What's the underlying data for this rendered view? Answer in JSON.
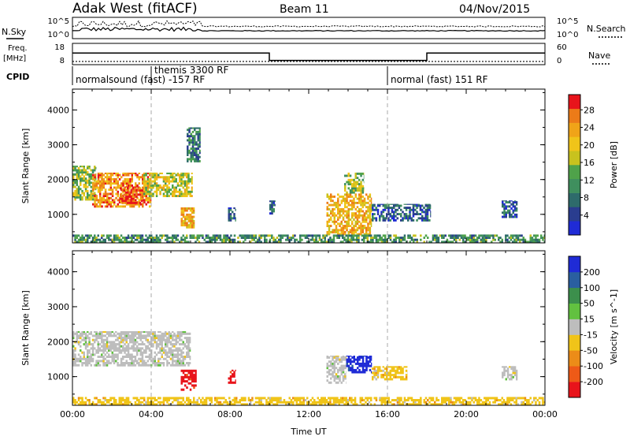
{
  "header": {
    "site": "Adak West (fitACF)",
    "beam": "Beam 11",
    "date": "04/Nov/2015"
  },
  "strip_labels": {
    "nsky": "N.Sky",
    "nsearch": "N.Search",
    "freq_line1": "Freq.",
    "freq_line2": "[MHz]",
    "nave": "Nave",
    "cpid": "CPID"
  },
  "strip_ticks": {
    "noise_left_top": "10^5",
    "noise_left_bottom": "10^0",
    "noise_right_top": "10^5",
    "noise_right_bottom": "10^0",
    "freq_left_top": "18",
    "freq_left_bottom": "8",
    "freq_right_top": "60",
    "freq_right_bottom": "0"
  },
  "cpid_segments": [
    {
      "label": "normalsound (fast) -157 RF",
      "start_hour": 0.0
    },
    {
      "label": "themis 3300 RF",
      "start_hour": 4.0
    },
    {
      "label": "normal (fast) 151 RF",
      "start_hour": 16.0
    }
  ],
  "colors": {
    "scale_blue": "#1f2bd6",
    "scale_red": "#e8141b",
    "ground_scatter_gray": "#bdbdbd",
    "frame": "#000000"
  },
  "chart_data": [
    {
      "type": "heatmap",
      "name": "power",
      "ylabel": "Slant Range [km]",
      "xlabel": "Time UT",
      "xlim": [
        0,
        24
      ],
      "ylim": [
        180,
        4600
      ],
      "yticks": [
        "1000",
        "2000",
        "3000",
        "4000"
      ],
      "xticks": [
        "00:00",
        "04:00",
        "08:00",
        "12:00",
        "16:00",
        "20:00",
        "00:00"
      ],
      "colorbar": {
        "label": "Power [dB]",
        "ticks": [
          "4",
          "8",
          "12",
          "16",
          "20",
          "24",
          "28"
        ],
        "colors": [
          "#1f2bd6",
          "#2a3d8f",
          "#2e6b6b",
          "#3f8f5e",
          "#4fa24a",
          "#c8c21e",
          "#f0c419",
          "#f0a418",
          "#ec7b18",
          "#e8141b"
        ]
      },
      "regions": [
        {
          "t0": 0.0,
          "t1": 1.2,
          "r0": 1400,
          "r1": 2400,
          "level": 16
        },
        {
          "t0": 1.0,
          "t1": 4.0,
          "r0": 1200,
          "r1": 2200,
          "level": 24
        },
        {
          "t0": 2.4,
          "t1": 3.6,
          "r0": 1300,
          "r1": 1800,
          "level": 28
        },
        {
          "t0": 3.6,
          "t1": 6.1,
          "r0": 1500,
          "r1": 2200,
          "level": 18
        },
        {
          "t0": 5.5,
          "t1": 6.2,
          "r0": 600,
          "r1": 1200,
          "level": 22
        },
        {
          "t0": 5.8,
          "t1": 6.5,
          "r0": 2500,
          "r1": 3500,
          "level": 10
        },
        {
          "t0": 7.9,
          "t1": 8.3,
          "r0": 800,
          "r1": 1200,
          "level": 8
        },
        {
          "t0": 10.0,
          "t1": 10.3,
          "r0": 1000,
          "r1": 1400,
          "level": 8
        },
        {
          "t0": 12.9,
          "t1": 15.2,
          "r0": 400,
          "r1": 1600,
          "level": 22
        },
        {
          "t0": 13.8,
          "t1": 14.8,
          "r0": 1600,
          "r1": 2200,
          "level": 16
        },
        {
          "t0": 15.2,
          "t1": 18.2,
          "r0": 800,
          "r1": 1300,
          "level": 8
        },
        {
          "t0": 21.8,
          "t1": 22.6,
          "r0": 900,
          "r1": 1400,
          "level": 8
        },
        {
          "t0": 0.0,
          "t1": 24.0,
          "r0": 180,
          "r1": 420,
          "level": 12
        }
      ]
    },
    {
      "type": "heatmap",
      "name": "velocity",
      "ylabel": "Slant Range [km]",
      "xlabel": "Time UT",
      "xlim": [
        0,
        24
      ],
      "ylim": [
        180,
        4600
      ],
      "yticks": [
        "1000",
        "2000",
        "3000",
        "4000"
      ],
      "xticks": [
        "00:00",
        "04:00",
        "08:00",
        "12:00",
        "16:00",
        "20:00",
        "00:00"
      ],
      "colorbar": {
        "label": "Velocity [m s^-1]",
        "ticks": [
          "200",
          "100",
          "50",
          "15",
          "-15",
          "-50",
          "-100",
          "-200"
        ],
        "colors": [
          "#1f2bd6",
          "#2a5fa0",
          "#3c8f4c",
          "#62c140",
          "#bdbdbd",
          "#f0c419",
          "#ec8c18",
          "#ee5a17",
          "#e8141b"
        ]
      },
      "regions": [
        {
          "t0": 0.0,
          "t1": 6.0,
          "r0": 1300,
          "r1": 2300,
          "velocity": 0
        },
        {
          "t0": 5.5,
          "t1": 6.3,
          "r0": 600,
          "r1": 1200,
          "velocity": -200
        },
        {
          "t0": 7.9,
          "t1": 8.3,
          "r0": 800,
          "r1": 1200,
          "velocity": -200
        },
        {
          "t0": 12.9,
          "t1": 13.9,
          "r0": 800,
          "r1": 1600,
          "velocity": 0
        },
        {
          "t0": 13.9,
          "t1": 15.2,
          "r0": 1100,
          "r1": 1600,
          "velocity": 200
        },
        {
          "t0": 15.2,
          "t1": 17.0,
          "r0": 900,
          "r1": 1300,
          "velocity": -50
        },
        {
          "t0": 21.8,
          "t1": 22.6,
          "r0": 900,
          "r1": 1300,
          "velocity": 0
        },
        {
          "t0": 0.0,
          "t1": 24.0,
          "r0": 180,
          "r1": 420,
          "velocity": -50
        }
      ]
    }
  ],
  "strip_data": {
    "noise_sky_level": 0.35,
    "noise_search_level": 0.55,
    "freq_steps": [
      {
        "t0": 0.0,
        "t1": 10.0,
        "level": 0.55
      },
      {
        "t0": 10.0,
        "t1": 18.0,
        "level": 0.2
      },
      {
        "t0": 18.0,
        "t1": 24.0,
        "level": 0.55
      }
    ],
    "nave_level": 0.15
  }
}
